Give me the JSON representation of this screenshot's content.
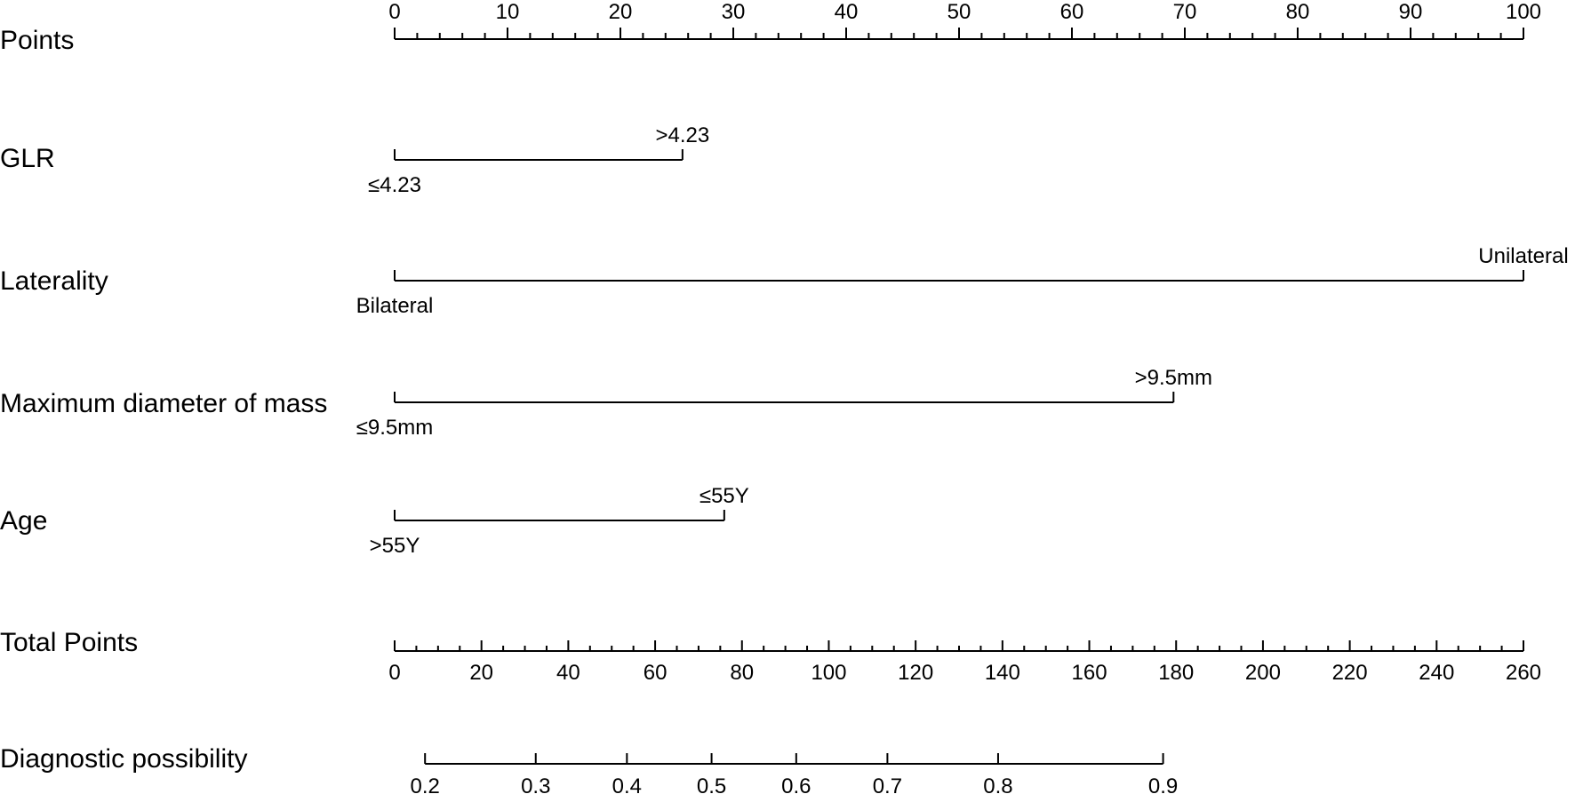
{
  "chart_data": {
    "type": "nomogram",
    "title": "",
    "points_axis": {
      "label": "Points",
      "min": 0,
      "max": 100,
      "major_ticks": [
        0,
        10,
        20,
        30,
        40,
        50,
        60,
        70,
        80,
        90,
        100
      ],
      "minor_step": 2
    },
    "variables": [
      {
        "label": "GLR",
        "levels": [
          {
            "label": "≤4.23",
            "points": 0
          },
          {
            "label": ">4.23",
            "points": 25.5
          }
        ]
      },
      {
        "label": "Laterality",
        "levels": [
          {
            "label": "Bilateral",
            "points": 0
          },
          {
            "label": "Unilateral",
            "points": 100
          }
        ]
      },
      {
        "label": "Maximum diameter of mass",
        "levels": [
          {
            "label": "≤9.5mm",
            "points": 0
          },
          {
            "label": ">9.5mm",
            "points": 69
          }
        ]
      },
      {
        "label": "Age",
        "levels": [
          {
            "label": ">55Y",
            "points": 0
          },
          {
            "label": "≤55Y",
            "points": 29.2
          }
        ]
      }
    ],
    "total_points_axis": {
      "label": "Total Points",
      "min": 0,
      "max": 260,
      "major_ticks": [
        0,
        20,
        40,
        60,
        80,
        100,
        120,
        140,
        160,
        180,
        200,
        220,
        240,
        260
      ],
      "minor_step": 5
    },
    "probability_axis": {
      "label": "Diagnostic possibility",
      "ticks": [
        {
          "label": "0.2",
          "total_points": 7
        },
        {
          "label": "0.3",
          "total_points": 32.5
        },
        {
          "label": "0.4",
          "total_points": 53.5
        },
        {
          "label": "0.5",
          "total_points": 73
        },
        {
          "label": "0.6",
          "total_points": 92.5
        },
        {
          "label": "0.7",
          "total_points": 113.5
        },
        {
          "label": "0.8",
          "total_points": 139
        },
        {
          "label": "0.9",
          "total_points": 177
        }
      ]
    }
  }
}
